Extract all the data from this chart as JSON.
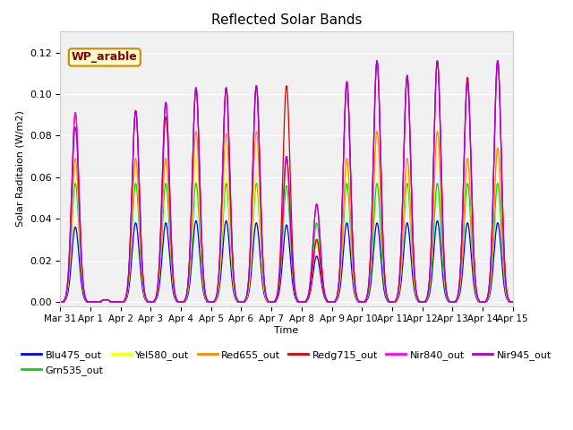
{
  "title": "Reflected Solar Bands",
  "xlabel": "Time",
  "ylabel": "Solar Raditaion (W/m2)",
  "annotation": "WP_arable",
  "ylim": [
    -0.002,
    0.13
  ],
  "yticks": [
    0.0,
    0.02,
    0.04,
    0.06,
    0.08,
    0.1,
    0.12
  ],
  "xtick_labels": [
    "Mar 31",
    "Apr 1",
    "Apr 2",
    "Apr 3",
    "Apr 4",
    "Apr 5",
    "Apr 6",
    "Apr 7",
    "Apr 8",
    "Apr 9",
    "Apr 10",
    "Apr 11",
    "Apr 12",
    "Apr 13",
    "Apr 14",
    "Apr 15"
  ],
  "series": [
    {
      "name": "Blu475_out",
      "color": "#0000ff"
    },
    {
      "name": "Grn535_out",
      "color": "#00dd00"
    },
    {
      "name": "Yel580_out",
      "color": "#ffff00"
    },
    {
      "name": "Red655_out",
      "color": "#ff8800"
    },
    {
      "name": "Redg715_out",
      "color": "#dd0000"
    },
    {
      "name": "Nir840_out",
      "color": "#ff00ff"
    },
    {
      "name": "Nir945_out",
      "color": "#aa00cc"
    }
  ],
  "bg_color": "#e8e8e8",
  "plot_bg": "#f0f0f0",
  "n_days": 15,
  "samples_per_day": 288,
  "blu_peaks": [
    0.036,
    0.001,
    0.038,
    0.038,
    0.039,
    0.039,
    0.038,
    0.037,
    0.022,
    0.038,
    0.038,
    0.038,
    0.039,
    0.038,
    0.038
  ],
  "grn_peaks": [
    0.057,
    0.001,
    0.057,
    0.057,
    0.057,
    0.057,
    0.057,
    0.056,
    0.038,
    0.057,
    0.057,
    0.057,
    0.057,
    0.057,
    0.057
  ],
  "yel_peaks": [
    0.065,
    0.001,
    0.065,
    0.068,
    0.069,
    0.064,
    0.062,
    0.065,
    0.03,
    0.065,
    0.082,
    0.063,
    0.082,
    0.069,
    0.074
  ],
  "red_peaks": [
    0.069,
    0.001,
    0.069,
    0.069,
    0.082,
    0.081,
    0.082,
    0.069,
    0.03,
    0.069,
    0.082,
    0.069,
    0.082,
    0.069,
    0.074
  ],
  "redg_peaks": [
    0.091,
    0.001,
    0.092,
    0.089,
    0.103,
    0.103,
    0.104,
    0.104,
    0.03,
    0.105,
    0.116,
    0.108,
    0.116,
    0.108,
    0.116
  ],
  "nir840_peaks": [
    0.091,
    0.001,
    0.092,
    0.096,
    0.103,
    0.103,
    0.104,
    0.07,
    0.047,
    0.106,
    0.116,
    0.109,
    0.116,
    0.106,
    0.116
  ],
  "nir945_peaks": [
    0.084,
    0.001,
    0.092,
    0.096,
    0.103,
    0.103,
    0.104,
    0.07,
    0.047,
    0.106,
    0.116,
    0.109,
    0.116,
    0.106,
    0.116
  ]
}
